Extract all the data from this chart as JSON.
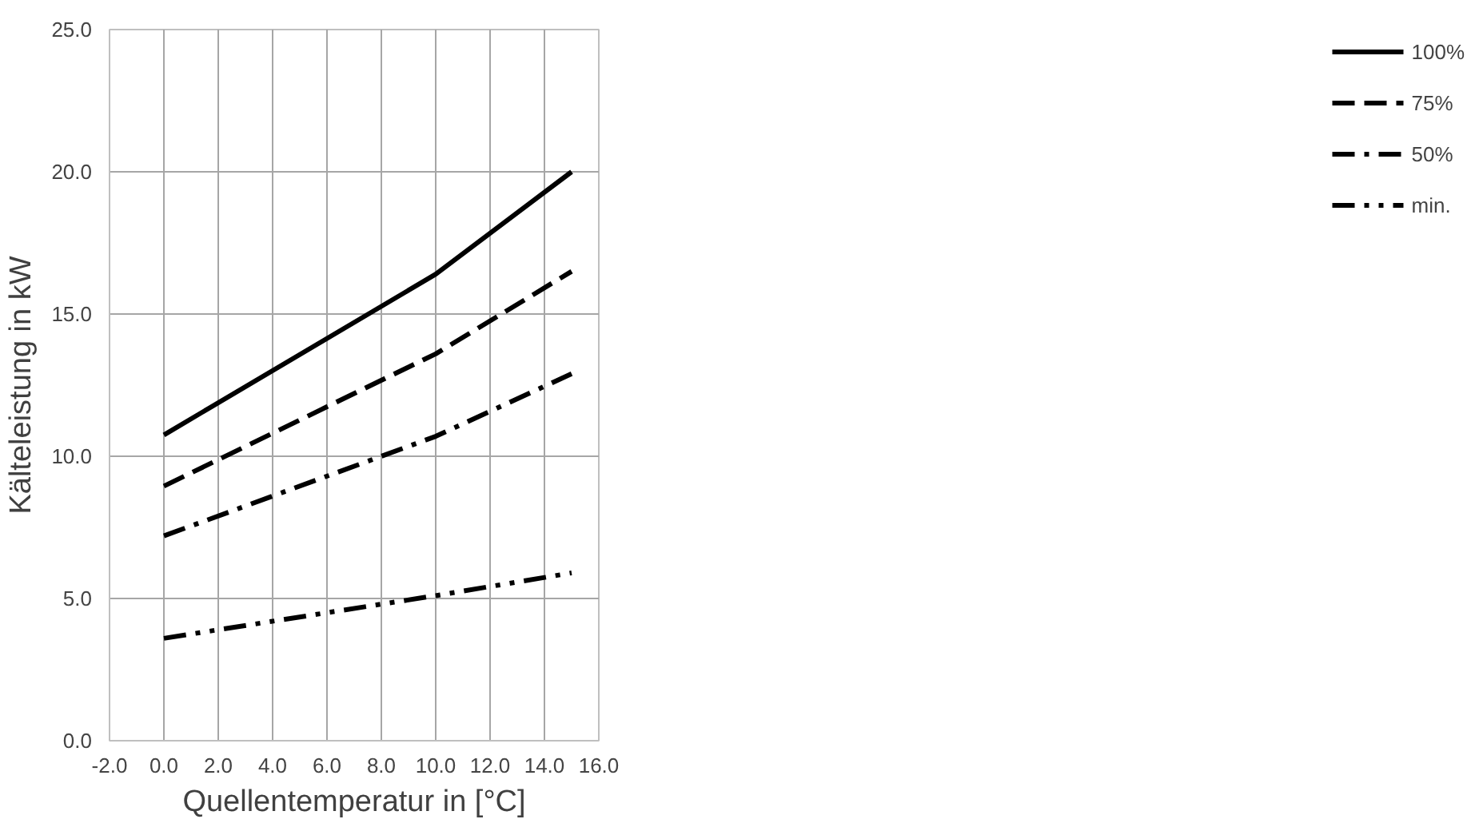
{
  "chart_data": {
    "type": "line",
    "xlabel": "Quellentemperatur in [°C]",
    "ylabel": "Kälteleistung in kW",
    "x": [
      0,
      10,
      15
    ],
    "series": [
      {
        "name": "100%",
        "color": "#000000",
        "values": [
          10.75,
          16.4,
          20.0
        ],
        "line_style": "solid"
      },
      {
        "name": "75%",
        "color": "#000000",
        "values": [
          8.95,
          13.6,
          16.5
        ],
        "line_style": "dashed"
      },
      {
        "name": "50%",
        "color": "#000000",
        "values": [
          7.2,
          10.7,
          12.9
        ],
        "line_style": "dashdot"
      },
      {
        "name": "min.",
        "color": "#000000",
        "values": [
          3.6,
          5.1,
          5.9
        ],
        "line_style": "dashdotdot"
      }
    ],
    "xlim": [
      -2,
      16
    ],
    "ylim": [
      0,
      25
    ],
    "xticks": [
      {
        "value": -2,
        "label": "-2.0"
      },
      {
        "value": 0,
        "label": "0.0"
      },
      {
        "value": 2,
        "label": "2.0"
      },
      {
        "value": 4,
        "label": "4.0"
      },
      {
        "value": 6,
        "label": "6.0"
      },
      {
        "value": 8,
        "label": "8.0"
      },
      {
        "value": 10,
        "label": "10.0"
      },
      {
        "value": 12,
        "label": "12.0"
      },
      {
        "value": 14,
        "label": "14.0"
      },
      {
        "value": 16,
        "label": "16.0"
      }
    ],
    "yticks": [
      {
        "value": 0,
        "label": "0.0"
      },
      {
        "value": 5,
        "label": "5.0"
      },
      {
        "value": 10,
        "label": "10.0"
      },
      {
        "value": 15,
        "label": "15.0"
      },
      {
        "value": 20,
        "label": "20.0"
      },
      {
        "value": 25,
        "label": "25.0"
      }
    ],
    "grid": true,
    "legend": "right",
    "marker": "none"
  }
}
